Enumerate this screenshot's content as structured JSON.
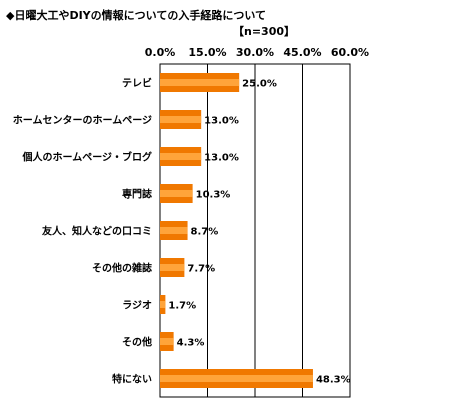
{
  "header": {
    "title": "◆日曜大工やDIYの情報についての入手経路について",
    "sample": "【n=300】"
  },
  "chart_data": {
    "type": "bar",
    "orientation": "horizontal",
    "categories": [
      "テレビ",
      "ホームセンターのホームページ",
      "個人のホームページ・ブログ",
      "専門誌",
      "友人、知人などの口コミ",
      "その他の雑誌",
      "ラジオ",
      "その他",
      "特にない"
    ],
    "values": [
      25.0,
      13.0,
      13.0,
      10.3,
      8.7,
      7.7,
      1.7,
      4.3,
      48.3
    ],
    "value_labels": [
      "25.0%",
      "13.0%",
      "13.0%",
      "10.3%",
      "8.7%",
      "7.7%",
      "1.7%",
      "4.3%",
      "48.3%"
    ],
    "xlim": [
      0,
      60
    ],
    "xticks": [
      0,
      15,
      30,
      45,
      60
    ],
    "xtick_labels": [
      "0.0%",
      "15.0%",
      "30.0%",
      "45.0%",
      "60.0%"
    ],
    "gridlines": true,
    "colors": {
      "bar_outer": "#F07800",
      "bar_inner": "#FFA43A",
      "grid": "#000000"
    }
  }
}
